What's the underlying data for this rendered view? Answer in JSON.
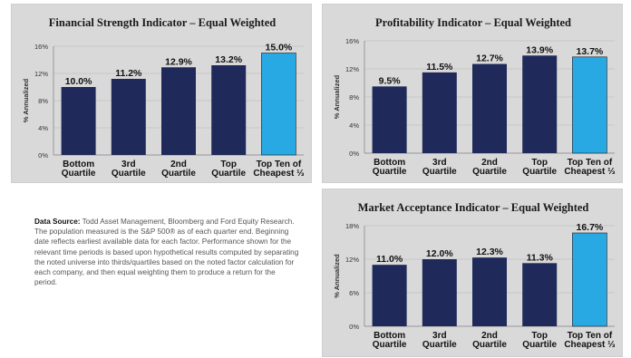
{
  "colors": {
    "bar": "#1f2a5a",
    "highlight_bar": "#29a9e4",
    "panel_bg": "#d9d9d9"
  },
  "chart_data": [
    {
      "type": "bar",
      "title": "Financial Strength Indicator – Equal Weighted",
      "ylabel": "% Annualized",
      "xlabel": "",
      "categories": [
        [
          "Bottom",
          "Quartile"
        ],
        [
          "3rd",
          "Quartile"
        ],
        [
          "2nd",
          "Quartile"
        ],
        [
          "Top",
          "Quartile"
        ],
        [
          "Top Ten of",
          "Cheapest ⅓"
        ]
      ],
      "values": [
        10.0,
        11.2,
        12.9,
        13.2,
        15.0
      ],
      "value_labels": [
        "10.0%",
        "11.2%",
        "12.9%",
        "13.2%",
        "15.0%"
      ],
      "yticks": [
        "0%",
        "4%",
        "8%",
        "12%",
        "16%"
      ],
      "ylim": [
        0,
        16
      ],
      "highlight_index": 4,
      "grid": true
    },
    {
      "type": "bar",
      "title": "Profitability Indicator – Equal Weighted",
      "ylabel": "% Annualized",
      "xlabel": "",
      "categories": [
        [
          "Bottom",
          "Quartile"
        ],
        [
          "3rd",
          "Quartile"
        ],
        [
          "2nd",
          "Quartile"
        ],
        [
          "Top",
          "Quartile"
        ],
        [
          "Top Ten of",
          "Cheapest ⅓"
        ]
      ],
      "values": [
        9.5,
        11.5,
        12.7,
        13.9,
        13.7
      ],
      "value_labels": [
        "9.5%",
        "11.5%",
        "12.7%",
        "13.9%",
        "13.7%"
      ],
      "yticks": [
        "0%",
        "4%",
        "8%",
        "12%",
        "16%"
      ],
      "ylim": [
        0,
        16
      ],
      "highlight_index": 4,
      "grid": true
    },
    {
      "type": "bar",
      "title": "Market Acceptance Indicator – Equal Weighted",
      "ylabel": "% Annualized",
      "xlabel": "",
      "categories": [
        [
          "Bottom",
          "Quartile"
        ],
        [
          "3rd",
          "Quartile"
        ],
        [
          "2nd",
          "Quartile"
        ],
        [
          "Top",
          "Quartile"
        ],
        [
          "Top Ten of",
          "Cheapest ⅓"
        ]
      ],
      "values": [
        11.0,
        12.0,
        12.3,
        11.3,
        16.7
      ],
      "value_labels": [
        "11.0%",
        "12.0%",
        "12.3%",
        "11.3%",
        "16.7%"
      ],
      "yticks": [
        "0%",
        "6%",
        "12%",
        "18%"
      ],
      "ylim": [
        0,
        18
      ],
      "highlight_index": 4,
      "grid": true
    }
  ],
  "source_note": {
    "heading": "Data Source:",
    "body": " Todd Asset Management, Bloomberg and Ford Equity Research. The population measured is the S&P 500® as of each quarter end. Beginning date reflects earliest available data for each factor. Performance shown for the relevant time periods is based upon hypothetical results computed by separating the noted universe into thirds/quartiles based on the noted factor calculation for each company, and then equal weighting them to produce a return for the period."
  }
}
